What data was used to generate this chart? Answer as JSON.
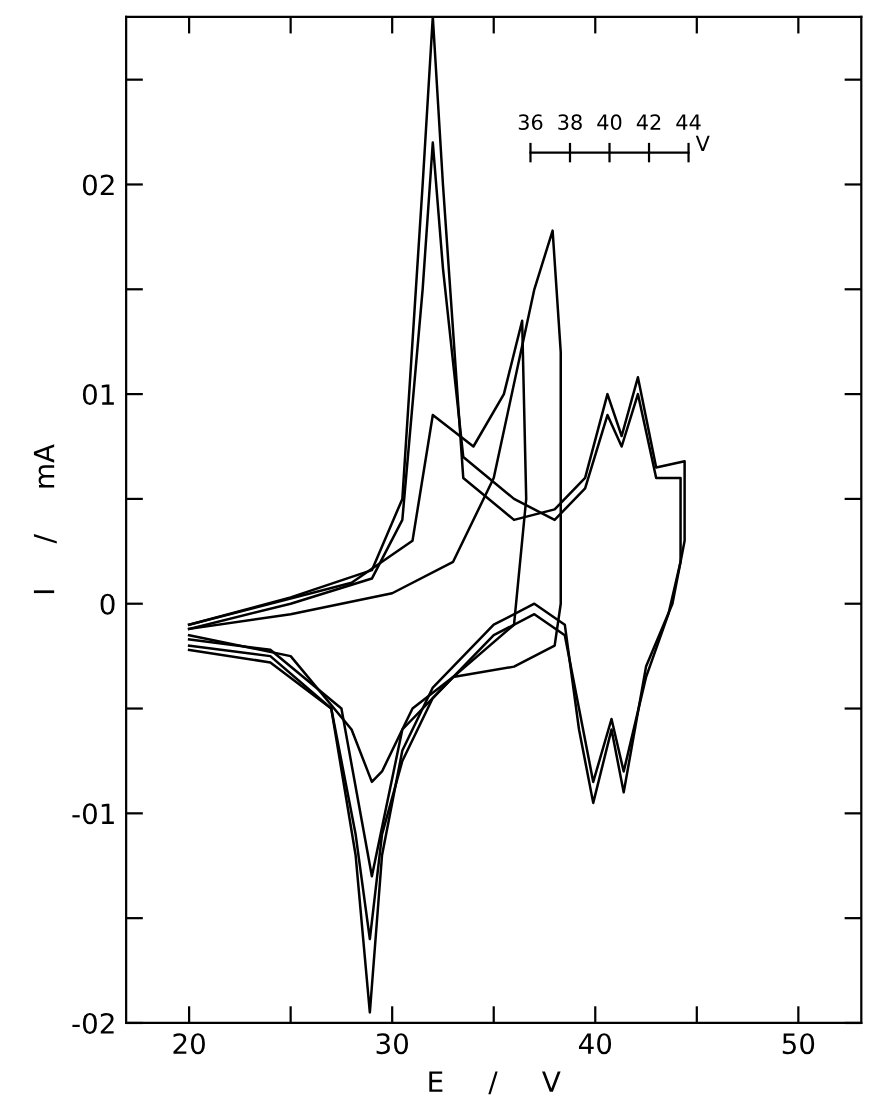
{
  "chart_data": {
    "type": "line",
    "xlabel": "E     /     V",
    "ylabel": "I     /     mA",
    "x2label": "V",
    "x2lim": [
      36,
      44
    ],
    "x2ticks": [
      36,
      38,
      40,
      42,
      44
    ],
    "xlim": [
      16.9,
      53.1
    ],
    "ylim": [
      -2,
      2.8
    ],
    "xticks": [
      20,
      {
        "value": 25,
        "label": null
      },
      30,
      {
        "value": 35,
        "label": null
      },
      40,
      {
        "value": 45,
        "label": null
      },
      50
    ],
    "yticks": [
      {
        "value": -2,
        "label": "-02"
      },
      {
        "value": -1.5,
        "label": null
      },
      {
        "value": -1,
        "label": "-01"
      },
      {
        "value": -0.5,
        "label": null
      },
      0,
      {
        "value": 0.5,
        "label": null
      },
      {
        "value": 1,
        "label": "01"
      },
      {
        "value": 1.5,
        "label": null
      },
      {
        "value": 2,
        "label": "02"
      },
      {
        "value": 2.5,
        "label": null
      }
    ],
    "grid": false,
    "legend": false,
    "marker": "none",
    "line_style": "solid",
    "series": [
      {
        "color": "#000000",
        "x": [
          20,
          25,
          30,
          33,
          35,
          37,
          37.9,
          38.3,
          38.3,
          38,
          36,
          33,
          31,
          29.5,
          29,
          28,
          25,
          20
        ],
        "values": [
          -0.12,
          -0.05,
          0.05,
          0.2,
          0.6,
          1.5,
          1.78,
          1.2,
          0.0,
          -0.2,
          -0.3,
          -0.35,
          -0.5,
          -0.8,
          -0.85,
          -0.6,
          -0.25,
          -0.15
        ]
      },
      {
        "color": "#000000",
        "x": [
          20,
          28,
          31,
          32,
          34,
          35.5,
          36.4,
          36.6,
          36,
          33,
          30.5,
          29,
          27.5,
          24,
          20
        ],
        "values": [
          -0.1,
          0.1,
          0.3,
          0.9,
          0.75,
          1.0,
          1.35,
          0.5,
          -0.1,
          -0.35,
          -0.6,
          -1.3,
          -0.5,
          -0.22,
          -0.17
        ]
      },
      {
        "color": "#000000",
        "x": [
          20,
          25,
          29,
          30.5,
          31.5,
          32,
          32.5,
          33.5,
          36,
          38,
          39.5,
          40.6,
          41.3,
          42.1,
          43,
          44.4,
          44.4,
          43.8,
          42.5,
          41.4,
          40.8,
          39.9,
          39.2,
          38.5,
          37,
          35,
          32,
          30.5,
          29.5,
          28.9,
          28.2,
          27,
          24,
          20
        ],
        "values": [
          -0.1,
          0.03,
          0.16,
          0.5,
          2.0,
          2.8,
          2.0,
          0.6,
          0.4,
          0.45,
          0.6,
          1.0,
          0.8,
          1.08,
          0.65,
          0.68,
          0.3,
          0.0,
          -0.3,
          -0.9,
          -0.6,
          -0.95,
          -0.6,
          -0.1,
          0.0,
          -0.1,
          -0.4,
          -0.7,
          -1.2,
          -1.95,
          -1.2,
          -0.5,
          -0.25,
          -0.2
        ]
      },
      {
        "color": "#000000",
        "x": [
          20,
          25,
          29,
          30.5,
          31.5,
          32,
          32.5,
          33.5,
          36,
          38,
          39.5,
          40.6,
          41.3,
          42.1,
          43,
          44.2,
          44.2,
          43.6,
          42.5,
          41.4,
          40.8,
          39.9,
          39.2,
          38.5,
          37,
          35,
          32,
          30.5,
          29.5,
          28.9,
          28.2,
          27,
          24,
          20
        ],
        "values": [
          -0.12,
          0.0,
          0.12,
          0.4,
          1.5,
          2.2,
          1.6,
          0.7,
          0.5,
          0.4,
          0.55,
          0.9,
          0.75,
          1.0,
          0.6,
          0.6,
          0.2,
          -0.05,
          -0.35,
          -0.8,
          -0.55,
          -0.85,
          -0.5,
          -0.15,
          -0.05,
          -0.15,
          -0.45,
          -0.75,
          -1.1,
          -1.6,
          -1.1,
          -0.5,
          -0.28,
          -0.22
        ]
      }
    ]
  }
}
